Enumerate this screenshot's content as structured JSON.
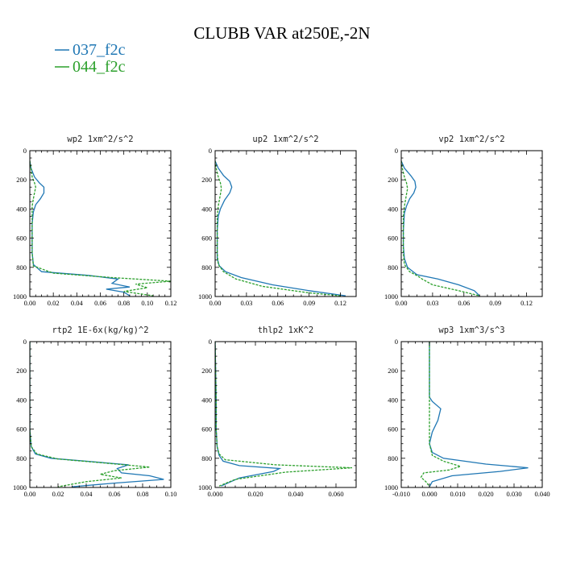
{
  "figure": {
    "title": "CLUBB VAR at250E,-2N"
  },
  "legend": [
    {
      "name": "037_f2c",
      "color": "#1f77b4",
      "dash": false
    },
    {
      "name": "044_f2c",
      "color": "#2ca02c",
      "dash": true
    }
  ],
  "chart_data": [
    {
      "type": "line",
      "title": "wp2   1xm^2/s^2",
      "xlim": [
        0,
        0.12
      ],
      "ylim": [
        1000,
        0
      ],
      "xticks": [
        0,
        0.02,
        0.04,
        0.06,
        0.08,
        0.1,
        0.12
      ],
      "xtick_labels": [
        "0.00",
        "0.02",
        "0.04",
        "0.06",
        "0.08",
        "0.10",
        "0.12"
      ],
      "yticks": [
        0,
        200,
        400,
        600,
        800,
        1000
      ],
      "ytick_labels": [
        "0",
        "200",
        "400",
        "600",
        "800",
        "1000"
      ],
      "series": [
        {
          "name": "037_f2c",
          "x": [
            0.0,
            0.001,
            0.004,
            0.008,
            0.012,
            0.012,
            0.009,
            0.005,
            0.003,
            0.002,
            0.002,
            0.002,
            0.003,
            0.01,
            0.05,
            0.075,
            0.07,
            0.085,
            0.065,
            0.08,
            0.085
          ],
          "y": [
            70,
            120,
            180,
            220,
            250,
            290,
            330,
            370,
            420,
            500,
            600,
            700,
            780,
            830,
            855,
            880,
            910,
            935,
            950,
            970,
            995
          ]
        },
        {
          "name": "044_f2c",
          "x": [
            0.0,
            0.001,
            0.002,
            0.004,
            0.005,
            0.004,
            0.003,
            0.002,
            0.002,
            0.002,
            0.002,
            0.003,
            0.02,
            0.07,
            0.12,
            0.09,
            0.1,
            0.08,
            0.105
          ],
          "y": [
            70,
            120,
            180,
            220,
            250,
            290,
            330,
            380,
            450,
            600,
            700,
            790,
            840,
            870,
            895,
            915,
            940,
            965,
            995
          ]
        }
      ]
    },
    {
      "type": "line",
      "title": "up2   1xm^2/s^2",
      "xlim": [
        0,
        0.135
      ],
      "ylim": [
        1000,
        0
      ],
      "xticks": [
        0,
        0.03,
        0.06,
        0.09,
        0.12
      ],
      "xtick_labels": [
        "0.00",
        "0.03",
        "0.06",
        "0.09",
        "0.12"
      ],
      "yticks": [
        0,
        200,
        400,
        600,
        800,
        1000
      ],
      "ytick_labels": [
        "0",
        "200",
        "400",
        "600",
        "800",
        "1000"
      ],
      "series": [
        {
          "name": "037_f2c",
          "x": [
            0.0,
            0.003,
            0.008,
            0.014,
            0.016,
            0.014,
            0.009,
            0.005,
            0.003,
            0.002,
            0.002,
            0.002,
            0.004,
            0.01,
            0.025,
            0.055,
            0.09,
            0.125
          ],
          "y": [
            70,
            120,
            170,
            210,
            250,
            290,
            340,
            400,
            450,
            550,
            650,
            740,
            790,
            830,
            870,
            920,
            960,
            995
          ]
        },
        {
          "name": "044_f2c",
          "x": [
            0.0,
            0.001,
            0.003,
            0.005,
            0.006,
            0.005,
            0.004,
            0.003,
            0.002,
            0.002,
            0.002,
            0.003,
            0.008,
            0.02,
            0.045,
            0.09,
            0.12
          ],
          "y": [
            70,
            120,
            180,
            220,
            260,
            300,
            340,
            380,
            450,
            600,
            700,
            780,
            830,
            880,
            930,
            975,
            995
          ]
        }
      ]
    },
    {
      "type": "line",
      "title": "vp2   1xm^2/s^2",
      "xlim": [
        0,
        0.135
      ],
      "ylim": [
        1000,
        0
      ],
      "xticks": [
        0,
        0.03,
        0.06,
        0.09,
        0.12
      ],
      "xtick_labels": [
        "0.00",
        "0.03",
        "0.06",
        "0.09",
        "0.12"
      ],
      "yticks": [
        0,
        200,
        400,
        600,
        800,
        1000
      ],
      "ytick_labels": [
        "0",
        "200",
        "400",
        "600",
        "800",
        "1000"
      ],
      "series": [
        {
          "name": "037_f2c",
          "x": [
            0.0,
            0.003,
            0.009,
            0.013,
            0.014,
            0.012,
            0.008,
            0.005,
            0.003,
            0.002,
            0.002,
            0.003,
            0.006,
            0.015,
            0.035,
            0.055,
            0.07,
            0.075
          ],
          "y": [
            70,
            120,
            170,
            210,
            250,
            290,
            330,
            380,
            430,
            550,
            650,
            740,
            800,
            850,
            880,
            920,
            960,
            995
          ]
        },
        {
          "name": "044_f2c",
          "x": [
            0.0,
            0.001,
            0.003,
            0.005,
            0.006,
            0.005,
            0.004,
            0.003,
            0.002,
            0.002,
            0.002,
            0.003,
            0.008,
            0.016,
            0.02,
            0.03,
            0.055,
            0.075
          ],
          "y": [
            70,
            120,
            180,
            220,
            260,
            300,
            340,
            380,
            450,
            600,
            700,
            780,
            830,
            860,
            880,
            920,
            960,
            995
          ]
        }
      ]
    },
    {
      "type": "line",
      "title": "rtp2   1E-6x(kg/kg)^2",
      "xlim": [
        0,
        0.1
      ],
      "ylim": [
        1000,
        0
      ],
      "xticks": [
        0,
        0.02,
        0.04,
        0.06,
        0.08,
        0.1
      ],
      "xtick_labels": [
        "0.00",
        "0.02",
        "0.04",
        "0.06",
        "0.08",
        "0.10"
      ],
      "yticks": [
        0,
        200,
        400,
        600,
        800,
        1000
      ],
      "ytick_labels": [
        "0",
        "200",
        "400",
        "600",
        "800",
        "1000"
      ],
      "series": [
        {
          "name": "037_f2c",
          "x": [
            0.0,
            0.0,
            0.0,
            0.001,
            0.004,
            0.015,
            0.04,
            0.07,
            0.062,
            0.065,
            0.085,
            0.095,
            0.06,
            0.03
          ],
          "y": [
            0,
            400,
            600,
            720,
            770,
            800,
            820,
            845,
            870,
            900,
            920,
            945,
            970,
            995
          ]
        },
        {
          "name": "044_f2c",
          "x": [
            0.0,
            0.0,
            0.0,
            0.001,
            0.005,
            0.02,
            0.05,
            0.085,
            0.06,
            0.05,
            0.065,
            0.04,
            0.02
          ],
          "y": [
            0,
            400,
            600,
            720,
            770,
            805,
            830,
            860,
            885,
            910,
            935,
            960,
            995
          ]
        }
      ]
    },
    {
      "type": "line",
      "title": "thlp2   1xK^2",
      "xlim": [
        0,
        0.07
      ],
      "ylim": [
        1000,
        0
      ],
      "xticks": [
        0,
        0.02,
        0.04,
        0.06
      ],
      "xtick_labels": [
        "0.000",
        "0.020",
        "0.040",
        "0.060"
      ],
      "yticks": [
        0,
        200,
        400,
        600,
        800,
        1000
      ],
      "ytick_labels": [
        "0",
        "200",
        "400",
        "600",
        "800",
        "1000"
      ],
      "series": [
        {
          "name": "037_f2c",
          "x": [
            0.0,
            0.0005,
            0.0005,
            0.001,
            0.002,
            0.004,
            0.012,
            0.032,
            0.029,
            0.012,
            0.003
          ],
          "y": [
            0,
            400,
            600,
            720,
            780,
            820,
            850,
            870,
            890,
            935,
            990
          ]
        },
        {
          "name": "044_f2c",
          "x": [
            0.0,
            0.0005,
            0.0005,
            0.001,
            0.002,
            0.005,
            0.03,
            0.068,
            0.035,
            0.01,
            0.002
          ],
          "y": [
            0,
            400,
            600,
            720,
            770,
            810,
            845,
            865,
            895,
            945,
            990
          ]
        }
      ]
    },
    {
      "type": "line",
      "title": "wp3   1xm^3/s^3",
      "xlim": [
        -0.01,
        0.04
      ],
      "ylim": [
        1000,
        0
      ],
      "xticks": [
        -0.01,
        0.0,
        0.01,
        0.02,
        0.03,
        0.04
      ],
      "xtick_labels": [
        "-0.010",
        "0.000",
        "0.010",
        "0.020",
        "0.030",
        "0.040"
      ],
      "yticks": [
        0,
        200,
        400,
        600,
        800,
        1000
      ],
      "ytick_labels": [
        "0",
        "200",
        "400",
        "600",
        "800",
        "1000"
      ],
      "series": [
        {
          "name": "037_f2c",
          "x": [
            0.0,
            0.0,
            0.0,
            0.001,
            0.004,
            0.003,
            0.001,
            0.0,
            0.001,
            0.005,
            0.02,
            0.035,
            0.025,
            0.008,
            0.001,
            0.0
          ],
          "y": [
            0,
            200,
            380,
            410,
            460,
            540,
            620,
            700,
            760,
            800,
            840,
            865,
            890,
            920,
            960,
            995
          ]
        },
        {
          "name": "044_f2c",
          "x": [
            0.0,
            0.0,
            0.0,
            0.0,
            0.001,
            0.005,
            0.011,
            0.007,
            -0.002,
            -0.003,
            -0.001,
            0.0
          ],
          "y": [
            0,
            200,
            400,
            700,
            780,
            820,
            855,
            880,
            900,
            930,
            965,
            995
          ]
        }
      ]
    }
  ]
}
